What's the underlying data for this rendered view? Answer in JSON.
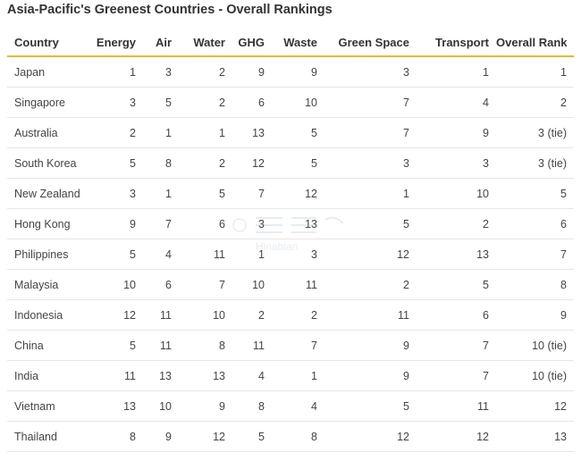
{
  "title": "Asia-Pacific's Greenest Countries - Overall Rankings",
  "columns": [
    "Country",
    "Energy",
    "Air",
    "Water",
    "GHG",
    "Waste",
    "Green Space",
    "Transport",
    "Overall Rank"
  ],
  "rows": [
    [
      "Japan",
      "1",
      "3",
      "2",
      "9",
      "9",
      "3",
      "1",
      "1"
    ],
    [
      "Singapore",
      "3",
      "5",
      "2",
      "6",
      "10",
      "7",
      "4",
      "2"
    ],
    [
      "Australia",
      "2",
      "1",
      "1",
      "13",
      "5",
      "7",
      "9",
      "3 (tie)"
    ],
    [
      "South Korea",
      "5",
      "8",
      "2",
      "12",
      "5",
      "3",
      "3",
      "3 (tie)"
    ],
    [
      "New Zealand",
      "3",
      "1",
      "5",
      "7",
      "12",
      "1",
      "10",
      "5"
    ],
    [
      "Hong Kong",
      "9",
      "7",
      "6",
      "3",
      "13",
      "5",
      "2",
      "6"
    ],
    [
      "Philippines",
      "5",
      "4",
      "11",
      "1",
      "3",
      "12",
      "13",
      "7"
    ],
    [
      "Malaysia",
      "10",
      "6",
      "7",
      "10",
      "11",
      "2",
      "5",
      "8"
    ],
    [
      "Indonesia",
      "12",
      "11",
      "10",
      "2",
      "2",
      "11",
      "6",
      "9"
    ],
    [
      "China",
      "5",
      "11",
      "8",
      "11",
      "7",
      "9",
      "7",
      "10 (tie)"
    ],
    [
      "India",
      "11",
      "13",
      "13",
      "4",
      "1",
      "9",
      "7",
      "10 (tie)"
    ],
    [
      "Vietnam",
      "13",
      "10",
      "9",
      "8",
      "4",
      "5",
      "11",
      "12"
    ],
    [
      "Thailand",
      "8",
      "9",
      "12",
      "5",
      "8",
      "12",
      "12",
      "13"
    ]
  ],
  "watermark": {
    "text": "Hinabian",
    "icon": "watermark-logo"
  },
  "colors": {
    "header_rule": "#e3b93a",
    "row_rule": "#e6e6e6",
    "text": "#333333"
  }
}
